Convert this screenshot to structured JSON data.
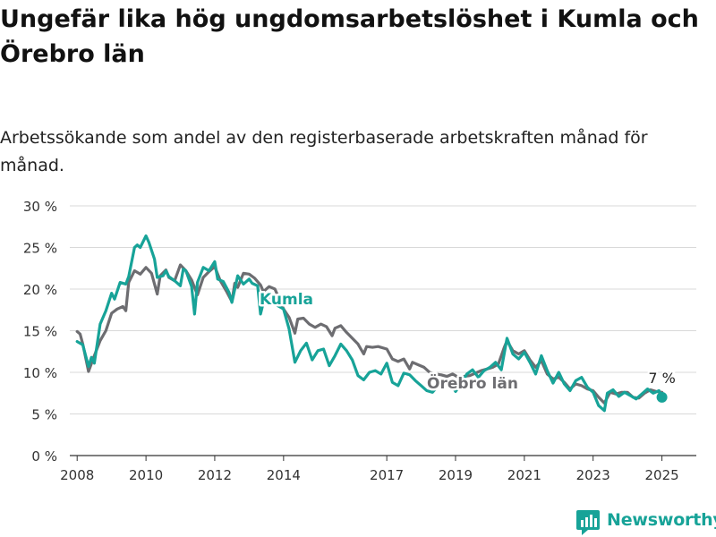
{
  "header": {
    "title": "Ungefär lika hög ungdomsarbetslöshet i Kumla och Örebro län",
    "subtitle": "Arbetssökande som andel av den registerbaserade arbetskraften månad för månad."
  },
  "brand": {
    "name": "Newsworthy"
  },
  "colors": {
    "kumla": "#17a398",
    "orebro": "#6d6d71",
    "grid": "#d9d9d9",
    "axis": "#333333"
  },
  "chart_data": {
    "type": "line",
    "ylim": [
      0,
      30
    ],
    "yticks": [
      0,
      5,
      10,
      15,
      20,
      25,
      30
    ],
    "ytick_labels": [
      "0 %",
      "5 %",
      "10 %",
      "15 %",
      "20 %",
      "25 %",
      "30 %"
    ],
    "xlim": [
      "2007-10-15",
      "2026-01-01"
    ],
    "xticks": [
      "2008-01-01",
      "2010-01-01",
      "2012-01-01",
      "2014-01-01",
      "2017-01-01",
      "2019-01-01",
      "2021-01-01",
      "2023-01-01",
      "2025-01-01"
    ],
    "xtick_labels": [
      "2008",
      "2010",
      "2012",
      "2014",
      "2017",
      "2019",
      "2021",
      "2023",
      "2025"
    ],
    "grid": true,
    "end_label": "7 %",
    "series": [
      {
        "name": "Kumla",
        "color": "#17a398",
        "points": [
          [
            "2008-01-01",
            13.7
          ],
          [
            "2008-03-01",
            13.3
          ],
          [
            "2008-05-01",
            10.7
          ],
          [
            "2008-06-01",
            11.8
          ],
          [
            "2008-07-01",
            11.1
          ],
          [
            "2008-09-01",
            15.8
          ],
          [
            "2008-11-01",
            17.4
          ],
          [
            "2009-01-01",
            19.5
          ],
          [
            "2009-02-01",
            18.8
          ],
          [
            "2009-04-01",
            20.8
          ],
          [
            "2009-06-01",
            20.6
          ],
          [
            "2009-07-01",
            21.5
          ],
          [
            "2009-09-01",
            25.0
          ],
          [
            "2009-10-01",
            25.3
          ],
          [
            "2009-11-01",
            25.0
          ],
          [
            "2010-01-01",
            26.4
          ],
          [
            "2010-02-01",
            25.6
          ],
          [
            "2010-04-01",
            23.6
          ],
          [
            "2010-05-01",
            21.4
          ],
          [
            "2010-07-01",
            21.6
          ],
          [
            "2010-08-01",
            22.2
          ],
          [
            "2010-09-01",
            21.5
          ],
          [
            "2010-11-01",
            21.0
          ],
          [
            "2011-01-01",
            20.4
          ],
          [
            "2011-02-01",
            22.4
          ],
          [
            "2011-03-01",
            22.2
          ],
          [
            "2011-05-01",
            20.3
          ],
          [
            "2011-06-01",
            17.0
          ],
          [
            "2011-07-01",
            20.8
          ],
          [
            "2011-09-01",
            22.6
          ],
          [
            "2011-11-01",
            22.2
          ],
          [
            "2012-01-01",
            23.3
          ],
          [
            "2012-02-01",
            21.2
          ],
          [
            "2012-04-01",
            20.9
          ],
          [
            "2012-06-01",
            19.6
          ],
          [
            "2012-07-01",
            18.4
          ],
          [
            "2012-09-01",
            21.6
          ],
          [
            "2012-11-01",
            20.6
          ],
          [
            "2013-01-01",
            21.2
          ],
          [
            "2013-02-01",
            20.7
          ],
          [
            "2013-04-01",
            20.4
          ],
          [
            "2013-05-01",
            17.0
          ],
          [
            "2013-06-01",
            18.4
          ],
          [
            "2013-09-01",
            19.4
          ],
          [
            "2013-11-01",
            18.0
          ],
          [
            "2014-01-01",
            17.6
          ],
          [
            "2014-03-01",
            15.2
          ],
          [
            "2014-05-01",
            11.2
          ],
          [
            "2014-07-01",
            12.6
          ],
          [
            "2014-09-01",
            13.5
          ],
          [
            "2014-11-01",
            11.5
          ],
          [
            "2015-01-01",
            12.6
          ],
          [
            "2015-03-01",
            12.8
          ],
          [
            "2015-05-01",
            10.8
          ],
          [
            "2015-07-01",
            12.0
          ],
          [
            "2015-09-01",
            13.4
          ],
          [
            "2015-11-01",
            12.6
          ],
          [
            "2016-01-01",
            11.5
          ],
          [
            "2016-03-01",
            9.6
          ],
          [
            "2016-05-01",
            9.1
          ],
          [
            "2016-07-01",
            10.0
          ],
          [
            "2016-09-01",
            10.2
          ],
          [
            "2016-11-01",
            9.8
          ],
          [
            "2017-01-01",
            11.1
          ],
          [
            "2017-03-01",
            8.8
          ],
          [
            "2017-05-01",
            8.4
          ],
          [
            "2017-07-01",
            9.9
          ],
          [
            "2017-09-01",
            9.7
          ],
          [
            "2017-11-01",
            9.0
          ],
          [
            "2018-01-01",
            8.4
          ],
          [
            "2018-03-01",
            7.8
          ],
          [
            "2018-05-01",
            7.6
          ],
          [
            "2018-07-01",
            8.4
          ],
          [
            "2018-09-01",
            9.0
          ],
          [
            "2018-11-01",
            8.8
          ],
          [
            "2019-01-01",
            7.7
          ],
          [
            "2019-03-01",
            8.6
          ],
          [
            "2019-05-01",
            9.8
          ],
          [
            "2019-07-01",
            10.3
          ],
          [
            "2019-09-01",
            9.4
          ],
          [
            "2019-11-01",
            10.2
          ],
          [
            "2020-01-01",
            10.6
          ],
          [
            "2020-03-01",
            11.2
          ],
          [
            "2020-05-01",
            10.3
          ],
          [
            "2020-07-01",
            14.1
          ],
          [
            "2020-09-01",
            12.2
          ],
          [
            "2020-11-01",
            11.6
          ],
          [
            "2021-01-01",
            12.4
          ],
          [
            "2021-03-01",
            11.2
          ],
          [
            "2021-05-01",
            9.8
          ],
          [
            "2021-07-01",
            12.0
          ],
          [
            "2021-09-01",
            10.2
          ],
          [
            "2021-11-01",
            8.7
          ],
          [
            "2022-01-01",
            10.0
          ],
          [
            "2022-03-01",
            8.6
          ],
          [
            "2022-05-01",
            7.8
          ],
          [
            "2022-07-01",
            9.0
          ],
          [
            "2022-09-01",
            9.4
          ],
          [
            "2022-11-01",
            8.2
          ],
          [
            "2023-01-01",
            7.6
          ],
          [
            "2023-03-01",
            6.0
          ],
          [
            "2023-05-01",
            5.4
          ],
          [
            "2023-06-01",
            7.5
          ],
          [
            "2023-08-01",
            7.9
          ],
          [
            "2023-10-01",
            7.1
          ],
          [
            "2023-12-01",
            7.6
          ],
          [
            "2024-02-01",
            7.2
          ],
          [
            "2024-04-01",
            6.8
          ],
          [
            "2024-06-01",
            7.4
          ],
          [
            "2024-08-01",
            8.0
          ],
          [
            "2024-10-01",
            7.5
          ],
          [
            "2024-12-01",
            7.8
          ],
          [
            "2025-01-01",
            7.0
          ]
        ]
      },
      {
        "name": "Örebro län",
        "color": "#6d6d71",
        "points": [
          [
            "2008-01-01",
            14.9
          ],
          [
            "2008-02-01",
            14.6
          ],
          [
            "2008-03-01",
            13.4
          ],
          [
            "2008-05-01",
            10.1
          ],
          [
            "2008-07-01",
            12.0
          ],
          [
            "2008-09-01",
            13.8
          ],
          [
            "2008-11-01",
            15.0
          ],
          [
            "2009-01-01",
            17.1
          ],
          [
            "2009-03-01",
            17.6
          ],
          [
            "2009-05-01",
            17.9
          ],
          [
            "2009-06-01",
            17.4
          ],
          [
            "2009-07-01",
            20.8
          ],
          [
            "2009-09-01",
            22.2
          ],
          [
            "2009-11-01",
            21.8
          ],
          [
            "2010-01-01",
            22.6
          ],
          [
            "2010-03-01",
            21.9
          ],
          [
            "2010-05-01",
            19.4
          ],
          [
            "2010-06-01",
            21.6
          ],
          [
            "2010-08-01",
            22.3
          ],
          [
            "2010-09-01",
            21.4
          ],
          [
            "2010-11-01",
            21.0
          ],
          [
            "2011-01-01",
            22.9
          ],
          [
            "2011-03-01",
            22.2
          ],
          [
            "2011-05-01",
            21.1
          ],
          [
            "2011-07-01",
            19.3
          ],
          [
            "2011-09-01",
            21.4
          ],
          [
            "2011-11-01",
            22.1
          ],
          [
            "2012-01-01",
            22.7
          ],
          [
            "2012-03-01",
            21.0
          ],
          [
            "2012-05-01",
            19.8
          ],
          [
            "2012-07-01",
            18.5
          ],
          [
            "2012-08-01",
            20.7
          ],
          [
            "2012-09-01",
            20.2
          ],
          [
            "2012-11-01",
            21.9
          ],
          [
            "2013-01-01",
            21.8
          ],
          [
            "2013-03-01",
            21.3
          ],
          [
            "2013-05-01",
            20.5
          ],
          [
            "2013-06-01",
            19.7
          ],
          [
            "2013-08-01",
            20.3
          ],
          [
            "2013-10-01",
            20.0
          ],
          [
            "2014-01-01",
            17.6
          ],
          [
            "2014-03-01",
            16.6
          ],
          [
            "2014-05-01",
            14.7
          ],
          [
            "2014-06-01",
            16.4
          ],
          [
            "2014-08-01",
            16.5
          ],
          [
            "2014-10-01",
            15.8
          ],
          [
            "2014-12-01",
            15.4
          ],
          [
            "2015-02-01",
            15.8
          ],
          [
            "2015-04-01",
            15.5
          ],
          [
            "2015-06-01",
            14.4
          ],
          [
            "2015-07-01",
            15.3
          ],
          [
            "2015-09-01",
            15.6
          ],
          [
            "2015-11-01",
            14.8
          ],
          [
            "2016-01-01",
            14.1
          ],
          [
            "2016-03-01",
            13.4
          ],
          [
            "2016-05-01",
            12.2
          ],
          [
            "2016-06-01",
            13.1
          ],
          [
            "2016-08-01",
            13.0
          ],
          [
            "2016-10-01",
            13.1
          ],
          [
            "2017-01-01",
            12.8
          ],
          [
            "2017-03-01",
            11.6
          ],
          [
            "2017-05-01",
            11.3
          ],
          [
            "2017-07-01",
            11.6
          ],
          [
            "2017-09-01",
            10.4
          ],
          [
            "2017-10-01",
            11.2
          ],
          [
            "2017-12-01",
            10.9
          ],
          [
            "2018-02-01",
            10.6
          ],
          [
            "2018-04-01",
            10.0
          ],
          [
            "2018-06-01",
            9.8
          ],
          [
            "2018-08-01",
            9.7
          ],
          [
            "2018-10-01",
            9.5
          ],
          [
            "2018-12-01",
            9.8
          ],
          [
            "2019-02-01",
            9.4
          ],
          [
            "2019-04-01",
            9.5
          ],
          [
            "2019-06-01",
            9.6
          ],
          [
            "2019-08-01",
            9.9
          ],
          [
            "2019-10-01",
            10.2
          ],
          [
            "2019-12-01",
            10.4
          ],
          [
            "2020-02-01",
            10.6
          ],
          [
            "2020-04-01",
            11.0
          ],
          [
            "2020-06-01",
            13.0
          ],
          [
            "2020-07-01",
            13.8
          ],
          [
            "2020-09-01",
            12.6
          ],
          [
            "2020-11-01",
            12.2
          ],
          [
            "2021-01-01",
            12.6
          ],
          [
            "2021-03-01",
            11.5
          ],
          [
            "2021-05-01",
            10.6
          ],
          [
            "2021-07-01",
            11.4
          ],
          [
            "2021-09-01",
            9.8
          ],
          [
            "2021-11-01",
            9.2
          ],
          [
            "2022-01-01",
            9.4
          ],
          [
            "2022-03-01",
            8.8
          ],
          [
            "2022-05-01",
            8.0
          ],
          [
            "2022-07-01",
            8.6
          ],
          [
            "2022-09-01",
            8.4
          ],
          [
            "2022-11-01",
            8.0
          ],
          [
            "2023-01-01",
            7.8
          ],
          [
            "2023-03-01",
            7.0
          ],
          [
            "2023-05-01",
            6.3
          ],
          [
            "2023-07-01",
            7.6
          ],
          [
            "2023-09-01",
            7.4
          ],
          [
            "2023-11-01",
            7.6
          ],
          [
            "2024-01-01",
            7.6
          ],
          [
            "2024-03-01",
            7.0
          ],
          [
            "2024-05-01",
            6.9
          ],
          [
            "2024-07-01",
            7.5
          ],
          [
            "2024-09-01",
            7.9
          ],
          [
            "2024-11-01",
            7.7
          ],
          [
            "2025-01-01",
            7.6
          ]
        ]
      }
    ]
  }
}
